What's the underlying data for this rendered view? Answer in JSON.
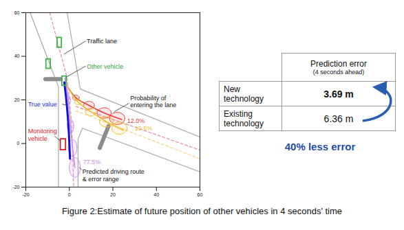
{
  "chart_data": {
    "type": "trajectory",
    "xlim": [
      -20,
      60
    ],
    "ylim": [
      -20,
      60
    ],
    "xticks": [
      -20,
      0,
      20,
      40,
      60
    ],
    "yticks": [
      -20,
      0,
      20,
      40,
      60
    ],
    "grid": false,
    "roads": {
      "color": "#a8a8a8",
      "lines": [
        {
          "x": [
            -18,
            -5,
            -5
          ],
          "y": [
            60,
            26,
            -20
          ]
        },
        {
          "x": [
            -1,
            5,
            60
          ],
          "y": [
            60,
            25,
            3
          ]
        },
        {
          "x": [
            60,
            6,
            4,
            4
          ],
          "y": [
            -13,
            7,
            2,
            -20
          ]
        }
      ]
    },
    "lanes": [
      {
        "color": "#e88aa8",
        "line_style": "dashed",
        "x": [
          -9,
          -1,
          1,
          2
        ],
        "y": [
          60,
          30,
          10,
          -20
        ]
      },
      {
        "color": "#e88aa8",
        "line_style": "dashed",
        "x": [
          3,
          60
        ],
        "y": [
          17,
          -3
        ]
      },
      {
        "color": "#f3d58a",
        "line_style": "dashed",
        "x": [
          3,
          60
        ],
        "y": [
          15,
          -7
        ]
      }
    ],
    "crosswalks": {
      "color": "#8c8c8c",
      "lines": [
        {
          "x": [
            -11,
            -4
          ],
          "y": [
            29.5,
            29.5
          ]
        },
        {
          "x": [
            14,
            18
          ],
          "y": [
            -2,
            8
          ]
        }
      ]
    },
    "vehicles": [
      {
        "color": "#3bb34a",
        "boxes": [
          {
            "x1": -5.5,
            "x2": -3.5,
            "y1": 44,
            "y2": 48.5
          },
          {
            "x1": -10.6,
            "x2": -8.6,
            "y1": 34.3,
            "y2": 38.7
          },
          {
            "x1": -3.3,
            "x2": -1.3,
            "y1": 26.5,
            "y2": 30.8
          }
        ]
      },
      {
        "color": "#d81e1e",
        "boxes": [
          {
            "x1": -4,
            "x2": -1.6,
            "y1": -3,
            "y2": 2
          }
        ]
      }
    ],
    "true_value": {
      "color": "#1010e0",
      "x": [
        -2.3,
        -1.2,
        -0.4,
        0,
        0.3
      ],
      "y": [
        28,
        18,
        8,
        0,
        -7
      ]
    },
    "routes": [
      {
        "color": "#e83a3a",
        "probability": 12.0,
        "probability_label": "12.0%",
        "x": [
          -1.5,
          3,
          9,
          16,
          24
        ],
        "y": [
          27,
          21,
          17.5,
          14,
          11
        ],
        "error_ranges": [
          {
            "x": 3,
            "y": 21,
            "rx": 1.5,
            "ry": 1.2
          },
          {
            "x": 9,
            "y": 17.5,
            "rx": 2.5,
            "ry": 1.8
          },
          {
            "x": 16,
            "y": 14,
            "rx": 3.2,
            "ry": 2.4
          },
          {
            "x": 22,
            "y": 11.5,
            "rx": 3.5,
            "ry": 2.8
          }
        ]
      },
      {
        "color": "#f0c030",
        "probability": 10.5,
        "probability_label": "10.5%",
        "x": [
          -1.5,
          4,
          10,
          17,
          25
        ],
        "y": [
          27,
          19,
          14.5,
          10,
          6
        ],
        "error_ranges": [
          {
            "x": 4,
            "y": 19,
            "rx": 1.5,
            "ry": 1.2
          },
          {
            "x": 10,
            "y": 14.5,
            "rx": 2.5,
            "ry": 1.8
          },
          {
            "x": 17,
            "y": 10,
            "rx": 3.2,
            "ry": 2.4
          },
          {
            "x": 23,
            "y": 7,
            "rx": 3.5,
            "ry": 2.8
          }
        ]
      },
      {
        "color": "#c48ae6",
        "probability": 77.5,
        "probability_label": "77.5%",
        "x": [
          -2,
          -0.5,
          0.5,
          1.5,
          2.5
        ],
        "y": [
          30,
          20,
          8,
          -2,
          -11
        ],
        "error_ranges": [
          {
            "x": -0.5,
            "y": 20,
            "rx": 1,
            "ry": 2
          },
          {
            "x": 0.5,
            "y": 8,
            "rx": 1.5,
            "ry": 3
          },
          {
            "x": 1.5,
            "y": -2,
            "rx": 2,
            "ry": 3.8
          },
          {
            "x": 2.5,
            "y": -11,
            "rx": 2.5,
            "ry": 4.5
          }
        ]
      }
    ],
    "annotations": [
      {
        "text": "Traffic lane",
        "color": "#111111"
      },
      {
        "text": "Other vehicle",
        "color": "#2fa83a"
      },
      {
        "text": "Probability of\nentering the lane",
        "color": "#111111"
      },
      {
        "text": "True value",
        "color": "#1a2fd8"
      },
      {
        "text": "Monitoring\nvehicle",
        "color": "#e0201b"
      },
      {
        "text": "Predicted driving route\n& error range",
        "color": "#111111"
      }
    ]
  },
  "table": {
    "header": {
      "title": "Prediction error",
      "subtitle": "(4 seconds ahead)"
    },
    "rows": [
      [
        "New technology",
        "3.69 m"
      ],
      [
        "Existing technology",
        "6.36 m"
      ]
    ]
  },
  "highlight": "40% less error",
  "caption": "Figure 2:Estimate of future position of other vehicles in 4 seconds' time"
}
